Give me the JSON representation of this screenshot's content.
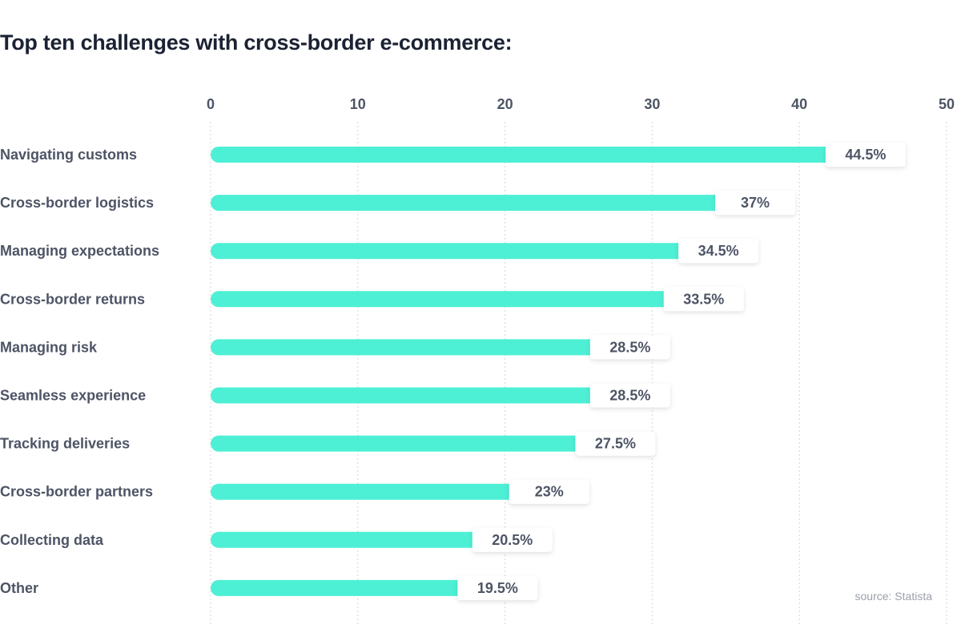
{
  "title": "Top ten challenges with cross-border e-commerce:",
  "source": "source: Statista",
  "chart_data": {
    "type": "bar",
    "orientation": "horizontal",
    "title": "Top ten challenges with cross-border e-commerce:",
    "categories": [
      "Navigating customs",
      "Cross-border logistics",
      "Managing expectations",
      "Cross-border returns",
      "Managing risk",
      "Seamless experience",
      "Tracking deliveries",
      "Cross-border partners",
      "Collecting data",
      "Other"
    ],
    "values": [
      44.5,
      37,
      34.5,
      33.5,
      28.5,
      28.5,
      27.5,
      23,
      20.5,
      19.5
    ],
    "value_labels": [
      "44.5%",
      "37%",
      "34.5%",
      "33.5%",
      "28.5%",
      "28.5%",
      "27.5%",
      "23%",
      "20.5%",
      "19.5%"
    ],
    "xticks": [
      "0",
      "10",
      "20",
      "30",
      "40",
      "50"
    ],
    "xlim": [
      0,
      50
    ],
    "grid": true,
    "bar_color": "#4df0d4",
    "text_color": "#4d5465"
  }
}
